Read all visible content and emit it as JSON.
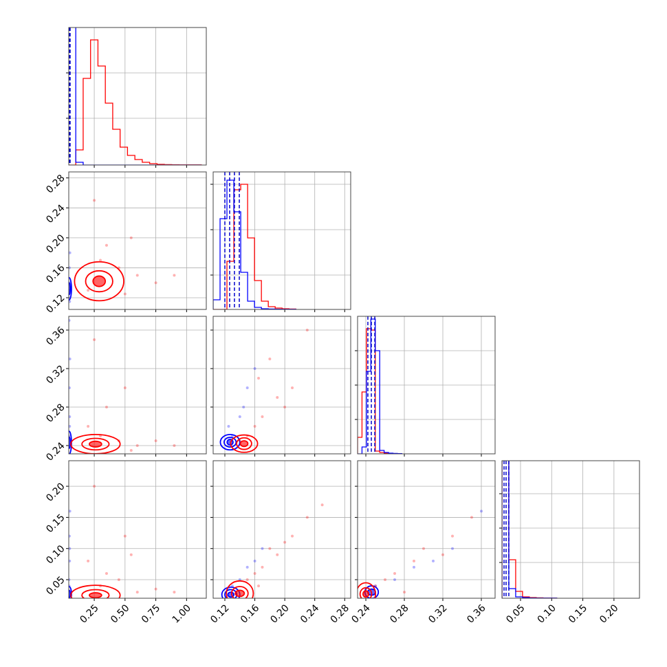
{
  "chart_data": {
    "type": "corner",
    "params": [
      {
        "lim": [
          0.043,
          1.16
        ],
        "ticks": [
          {
            "value": 0.25,
            "label": "0.25"
          },
          {
            "value": 0.5,
            "label": "0.50"
          },
          {
            "value": 0.75,
            "label": "0.75"
          },
          {
            "value": 1,
            "label": "1.00"
          }
        ]
      },
      {
        "lim": [
          0.1044,
          0.288
        ],
        "ticks": [
          0.12,
          0.16,
          {
            "value": 0.2,
            "label": "0.20"
          },
          0.24,
          0.28
        ]
      },
      {
        "lim": [
          0.2314,
          0.3743
        ],
        "ticks": [
          0.24,
          0.28,
          0.32,
          0.36
        ]
      },
      {
        "lim": [
          0.0202,
          0.241
        ],
        "ticks": [
          0.05,
          {
            "value": 0.1,
            "label": "0.10"
          },
          0.15,
          {
            "value": 0.2,
            "label": "0.20"
          }
        ]
      }
    ],
    "grid": true,
    "histograms": [
      {
        "bins": [
          0.04,
          0.1,
          0.16,
          0.22,
          0.28,
          0.34,
          0.4,
          0.46,
          0.52,
          0.58,
          0.64,
          0.7,
          0.76,
          0.82,
          0.88,
          0.94,
          1.0,
          1.06,
          1.12
        ],
        "ylim": [
          0,
          100
        ],
        "yticks": [
          34,
          67
        ],
        "series": [
          {
            "color": "#ff0000",
            "values": [
              0,
              11,
              63,
              91,
              72,
              45,
              26,
              13,
              7,
              4,
              2,
              1,
              0.5,
              0.3,
              0.2,
              0.1,
              0.1,
              0.1
            ]
          },
          {
            "color": "#0000ff",
            "values": [
              120,
              2,
              0,
              0,
              0,
              0,
              0,
              0,
              0,
              0,
              0,
              0,
              0,
              0,
              0,
              0,
              0,
              0
            ]
          }
        ],
        "quantiles": {
          "color": "#0000cc",
          "values": [
            0.046,
            0.05,
            0.054
          ]
        }
      },
      {
        "bins": [
          0.1044,
          0.1136,
          0.1228,
          0.132,
          0.1412,
          0.1504,
          0.1596,
          0.1688,
          0.178,
          0.1872,
          0.1964,
          0.2056,
          0.2148
        ],
        "ylim": [
          0,
          100
        ],
        "yticks": [
          25,
          58,
          91
        ],
        "series": [
          {
            "color": "#ff0000",
            "values": [
              0,
              0,
              35,
              87,
              91,
              52,
              21,
              6,
              2,
              1,
              0.5,
              0.3
            ]
          },
          {
            "color": "#0000ff",
            "values": [
              7,
              66,
              94,
              71,
              27,
              6,
              1.5,
              0.5,
              0.3,
              0.2,
              0.1,
              0.1
            ]
          }
        ],
        "quantiles": {
          "color": "#0000cc",
          "values": [
            0.12,
            0.1264,
            0.1328,
            0.1393
          ]
        }
      },
      {
        "bins": [
          0.2314,
          0.236,
          0.2406,
          0.2452,
          0.2498,
          0.2544,
          0.259,
          0.2636,
          0.2682,
          0.2728,
          0.2774
        ],
        "ylim": [
          0,
          100
        ],
        "yticks": [
          25,
          50,
          75
        ],
        "series": [
          {
            "color": "#ff0000",
            "values": [
              12,
              45,
              91,
              90,
              2,
              1,
              0.5,
              0.3,
              0.2,
              0.1
            ]
          },
          {
            "color": "#0000ff",
            "values": [
              0,
              5,
              60,
              98,
              75,
              2.5,
              1,
              0.5,
              0.3,
              0.2
            ]
          }
        ],
        "quantiles": {
          "color": "#0000cc",
          "values": [
            0.2421,
            0.2457,
            0.2493
          ]
        }
      },
      {
        "bins": [
          0.0202,
          0.0312,
          0.0422,
          0.0532,
          0.0642,
          0.0752,
          0.0862,
          0.0972,
          0.1082
        ],
        "ylim": [
          0,
          100
        ],
        "yticks": [
          26,
          51,
          76
        ],
        "series": [
          {
            "color": "#ff0000",
            "values": [
              120,
              28,
              5,
              1,
              0.5,
              0.3,
              0.2,
              0.1
            ]
          },
          {
            "color": "#0000ff",
            "values": [
              130,
              7,
              1,
              0.5,
              0.2,
              0.1,
              0.1,
              0.1
            ]
          }
        ],
        "quantiles": {
          "color": "#0000cc",
          "values": [
            0.0235,
            0.0268,
            0.0312
          ]
        }
      }
    ],
    "panels": [
      {
        "series": [
          {
            "color": "#0000ff",
            "x": [
              0.045,
              0.05,
              0.048,
              0.052,
              0.046,
              0.05
            ],
            "y": [
              0.12,
              0.14,
              0.16,
              0.18,
              0.13,
              0.115
            ],
            "contour": {
              "cx": 0.045,
              "cy": 0.132,
              "rx": [
                0.01,
                0.02
              ],
              "ry": [
                0.008,
                0.015
              ]
            }
          },
          {
            "color": "#ff0000",
            "x": [
              0.3,
              0.45,
              0.6,
              0.2,
              0.75,
              0.5,
              0.35,
              0.9,
              0.25,
              0.55
            ],
            "y": [
              0.17,
              0.16,
              0.15,
              0.13,
              0.14,
              0.125,
              0.19,
              0.15,
              0.25,
              0.2
            ],
            "contour": {
              "cx": 0.29,
              "cy": 0.142,
              "rx": [
                0.05,
                0.11,
                0.2
              ],
              "ry": [
                0.007,
                0.014,
                0.026
              ]
            }
          }
        ]
      },
      {
        "series": [
          {
            "color": "#0000ff",
            "x": [
              0.045,
              0.05,
              0.048,
              0.052,
              0.046,
              0.05
            ],
            "y": [
              0.25,
              0.27,
              0.3,
              0.33,
              0.37,
              0.26
            ],
            "contour": {
              "cx": 0.045,
              "cy": 0.243,
              "rx": [
                0.01,
                0.02
              ],
              "ry": [
                0.006,
                0.012
              ]
            }
          },
          {
            "color": "#ff0000",
            "x": [
              0.3,
              0.45,
              0.6,
              0.2,
              0.75,
              0.5,
              0.35,
              0.9,
              0.25,
              0.55
            ],
            "y": [
              0.25,
              0.245,
              0.24,
              0.26,
              0.245,
              0.3,
              0.28,
              0.24,
              0.35,
              0.235
            ],
            "contour": {
              "cx": 0.26,
              "cy": 0.2415,
              "rx": [
                0.05,
                0.11,
                0.2
              ],
              "ry": [
                0.003,
                0.006,
                0.01
              ]
            }
          }
        ]
      },
      {
        "series": [
          {
            "color": "#0000ff",
            "x": [
              0.13,
              0.14,
              0.15,
              0.125,
              0.16,
              0.145
            ],
            "y": [
              0.25,
              0.27,
              0.3,
              0.26,
              0.32,
              0.28
            ],
            "contour": {
              "cx": 0.127,
              "cy": 0.2435,
              "rx": [
                0.004,
                0.008,
                0.013
              ],
              "ry": [
                0.003,
                0.005,
                0.008
              ]
            }
          },
          {
            "color": "#ff0000",
            "x": [
              0.15,
              0.17,
              0.19,
              0.16,
              0.21,
              0.18,
              0.23,
              0.14,
              0.2,
              0.165
            ],
            "y": [
              0.25,
              0.27,
              0.29,
              0.26,
              0.3,
              0.33,
              0.36,
              0.245,
              0.28,
              0.31
            ],
            "contour": {
              "cx": 0.1457,
              "cy": 0.242,
              "rx": [
                0.005,
                0.01,
                0.018
              ],
              "ry": [
                0.003,
                0.006,
                0.009
              ]
            }
          }
        ]
      },
      {
        "series": [
          {
            "color": "#0000ff",
            "x": [
              0.045,
              0.05,
              0.048,
              0.052,
              0.046,
              0.05
            ],
            "y": [
              0.05,
              0.08,
              0.12,
              0.16,
              0.04,
              0.1
            ],
            "contour": {
              "cx": 0.045,
              "cy": 0.027,
              "rx": [
                0.01,
                0.02
              ],
              "ry": [
                0.006,
                0.012
              ]
            }
          },
          {
            "color": "#ff0000",
            "x": [
              0.3,
              0.45,
              0.6,
              0.2,
              0.75,
              0.5,
              0.35,
              0.9,
              0.25,
              0.55
            ],
            "y": [
              0.04,
              0.05,
              0.03,
              0.08,
              0.035,
              0.12,
              0.06,
              0.03,
              0.2,
              0.09
            ],
            "contour": {
              "cx": 0.26,
              "cy": 0.025,
              "rx": [
                0.05,
                0.11,
                0.2
              ],
              "ry": [
                0.004,
                0.009,
                0.016
              ]
            }
          }
        ]
      },
      {
        "series": [
          {
            "color": "#0000ff",
            "x": [
              0.13,
              0.14,
              0.15,
              0.125,
              0.16,
              0.17
            ],
            "y": [
              0.04,
              0.05,
              0.07,
              0.035,
              0.08,
              0.1
            ],
            "contour": {
              "cx": 0.128,
              "cy": 0.026,
              "rx": [
                0.004,
                0.008,
                0.012
              ],
              "ry": [
                0.004,
                0.008,
                0.012
              ]
            }
          },
          {
            "color": "#ff0000",
            "x": [
              0.15,
              0.17,
              0.19,
              0.16,
              0.21,
              0.18,
              0.23,
              0.25,
              0.2,
              0.165
            ],
            "y": [
              0.05,
              0.07,
              0.09,
              0.06,
              0.12,
              0.1,
              0.15,
              0.17,
              0.11,
              0.04
            ],
            "contour": {
              "cx": 0.14,
              "cy": 0.028,
              "rx": [
                0.006,
                0.011,
                0.018
              ],
              "ry": [
                0.005,
                0.011,
                0.02
              ]
            }
          }
        ]
      },
      {
        "series": [
          {
            "color": "#0000ff",
            "x": [
              0.25,
              0.27,
              0.29,
              0.31,
              0.33,
              0.36
            ],
            "y": [
              0.04,
              0.05,
              0.07,
              0.08,
              0.1,
              0.16
            ],
            "contour": {
              "cx": 0.246,
              "cy": 0.03,
              "rx": [
                0.004,
                0.007
              ],
              "ry": [
                0.005,
                0.01
              ]
            }
          },
          {
            "color": "#ff0000",
            "x": [
              0.25,
              0.27,
              0.3,
              0.33,
              0.26,
              0.29,
              0.35,
              0.28,
              0.24,
              0.32
            ],
            "y": [
              0.04,
              0.06,
              0.1,
              0.12,
              0.05,
              0.08,
              0.15,
              0.03,
              0.035,
              0.09
            ],
            "contour": {
              "cx": 0.24,
              "cy": 0.027,
              "rx": [
                0.003,
                0.006,
                0.01
              ],
              "ry": [
                0.005,
                0.01,
                0.018
              ]
            }
          }
        ]
      }
    ]
  }
}
